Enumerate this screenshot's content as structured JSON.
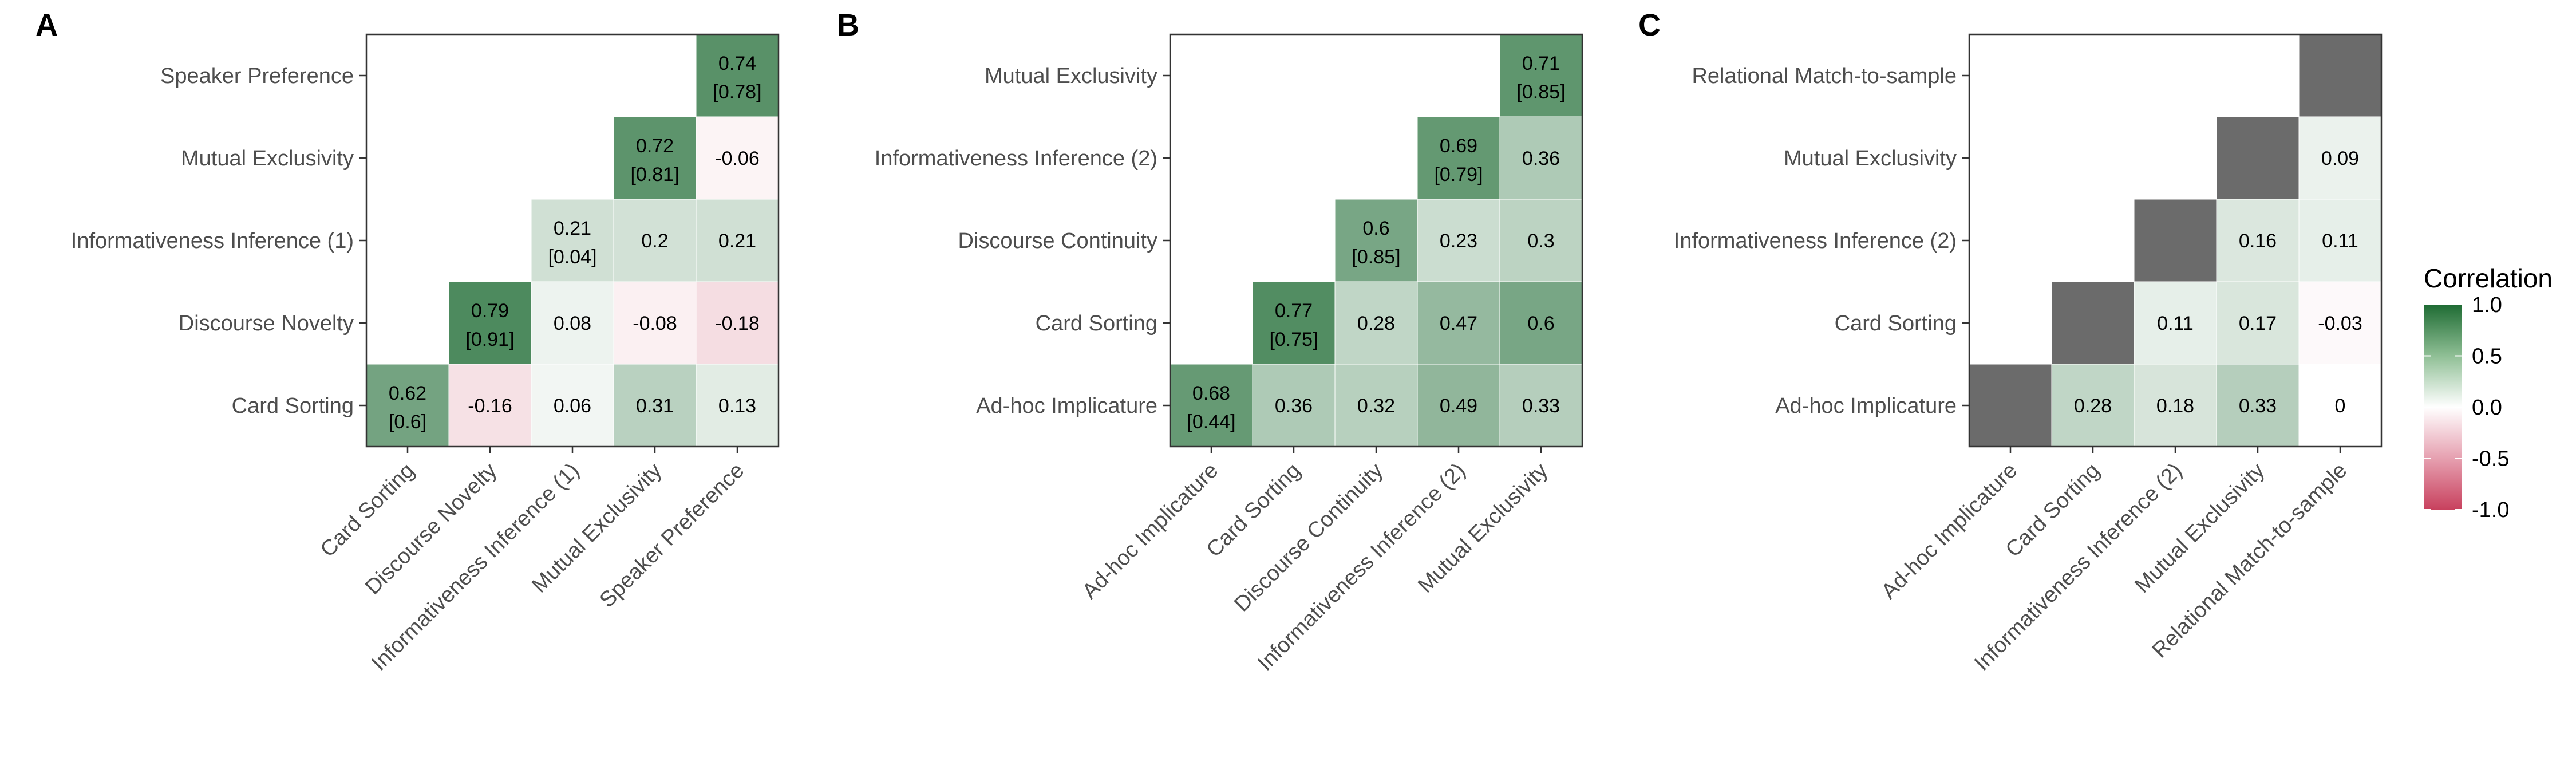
{
  "palette": {
    "positive": "#1e6b33",
    "zero": "#ffffff",
    "negative": "#c8415e",
    "missing": "#6b6b6b",
    "frame": "#333333",
    "axis_text": "#4d4d4d"
  },
  "legend": {
    "title": "Correlation",
    "ticks": [
      1.0,
      0.5,
      0.0,
      -0.5,
      -1.0
    ],
    "tick_labels": [
      "1.0",
      "0.5",
      "0.0",
      "-0.5",
      "-1.0"
    ],
    "range": [
      -1,
      1
    ],
    "placement": "right"
  },
  "chart_data": [
    {
      "type": "heatmap",
      "panel": "A",
      "variables": [
        "Card Sorting",
        "Discourse Novelty",
        "Informativeness Inference (1)",
        "Mutual Exclusivity",
        "Speaker Preference"
      ],
      "diagonal": [
        {
          "value": 0.62,
          "reliability": "[0.6]"
        },
        {
          "value": 0.79,
          "reliability": "[0.91]"
        },
        {
          "value": 0.21,
          "reliability": "[0.04]"
        },
        {
          "value": 0.72,
          "reliability": "[0.81]"
        },
        {
          "value": 0.74,
          "reliability": "[0.78]"
        }
      ],
      "pairs": [
        {
          "col": 1,
          "row": 0,
          "value": -0.16
        },
        {
          "col": 2,
          "row": 0,
          "value": 0.06
        },
        {
          "col": 2,
          "row": 1,
          "value": 0.08
        },
        {
          "col": 3,
          "row": 0,
          "value": 0.31
        },
        {
          "col": 3,
          "row": 1,
          "value": -0.08
        },
        {
          "col": 3,
          "row": 2,
          "value": 0.2
        },
        {
          "col": 4,
          "row": 0,
          "value": 0.13
        },
        {
          "col": 4,
          "row": 1,
          "value": -0.18
        },
        {
          "col": 4,
          "row": 2,
          "value": 0.21
        },
        {
          "col": 4,
          "row": 3,
          "value": -0.06
        }
      ]
    },
    {
      "type": "heatmap",
      "panel": "B",
      "variables": [
        "Ad-hoc Implicature",
        "Card Sorting",
        "Discourse Continuity",
        "Informativeness Inference (2)",
        "Mutual Exclusivity"
      ],
      "diagonal": [
        {
          "value": 0.68,
          "reliability": "[0.44]"
        },
        {
          "value": 0.77,
          "reliability": "[0.75]"
        },
        {
          "value": 0.6,
          "reliability": "[0.85]"
        },
        {
          "value": 0.69,
          "reliability": "[0.79]"
        },
        {
          "value": 0.71,
          "reliability": "[0.85]"
        }
      ],
      "pairs": [
        {
          "col": 1,
          "row": 0,
          "value": 0.36
        },
        {
          "col": 2,
          "row": 0,
          "value": 0.32
        },
        {
          "col": 2,
          "row": 1,
          "value": 0.28
        },
        {
          "col": 3,
          "row": 0,
          "value": 0.49
        },
        {
          "col": 3,
          "row": 1,
          "value": 0.47
        },
        {
          "col": 3,
          "row": 2,
          "value": 0.23
        },
        {
          "col": 4,
          "row": 0,
          "value": 0.33
        },
        {
          "col": 4,
          "row": 1,
          "value": 0.6
        },
        {
          "col": 4,
          "row": 2,
          "value": 0.3
        },
        {
          "col": 4,
          "row": 3,
          "value": 0.36
        }
      ]
    },
    {
      "type": "heatmap",
      "panel": "C",
      "variables": [
        "Ad-hoc Implicature",
        "Card Sorting",
        "Informativeness Inference (2)",
        "Mutual Exclusivity",
        "Relational Match-to-sample"
      ],
      "diagonal": [
        {
          "value": null,
          "reliability": null
        },
        {
          "value": null,
          "reliability": null
        },
        {
          "value": null,
          "reliability": null
        },
        {
          "value": null,
          "reliability": null
        },
        {
          "value": null,
          "reliability": null
        }
      ],
      "pairs": [
        {
          "col": 1,
          "row": 0,
          "value": 0.28
        },
        {
          "col": 2,
          "row": 0,
          "value": 0.18
        },
        {
          "col": 2,
          "row": 1,
          "value": 0.11
        },
        {
          "col": 3,
          "row": 0,
          "value": 0.33
        },
        {
          "col": 3,
          "row": 1,
          "value": 0.17
        },
        {
          "col": 3,
          "row": 2,
          "value": 0.16
        },
        {
          "col": 4,
          "row": 0,
          "value": 0
        },
        {
          "col": 4,
          "row": 1,
          "value": -0.03
        },
        {
          "col": 4,
          "row": 2,
          "value": 0.11
        },
        {
          "col": 4,
          "row": 3,
          "value": 0.09
        }
      ]
    }
  ]
}
